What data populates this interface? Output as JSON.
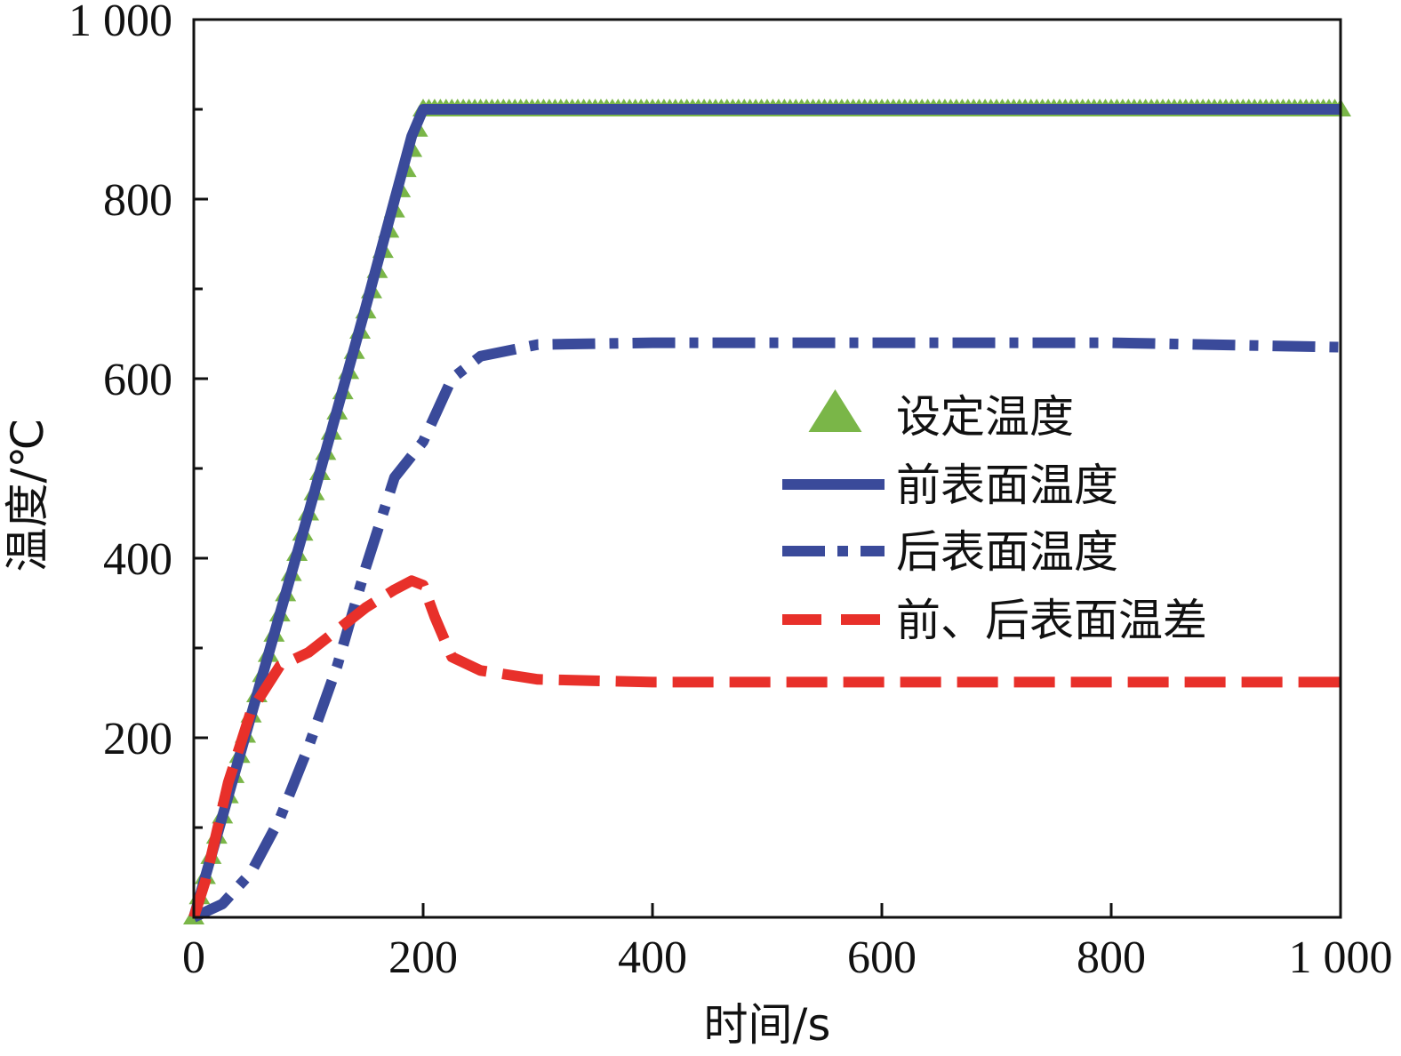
{
  "chart_data": {
    "type": "line",
    "xlabel": "时间/s",
    "ylabel": "温度/℃",
    "xlim": [
      0,
      1000
    ],
    "ylim": [
      0,
      1000
    ],
    "x_ticks": [
      {
        "value": 0,
        "label": "0"
      },
      {
        "value": 200,
        "label": "200"
      },
      {
        "value": 400,
        "label": "400"
      },
      {
        "value": 600,
        "label": "600"
      },
      {
        "value": 800,
        "label": "800"
      },
      {
        "value": 1000,
        "label": "1 000"
      }
    ],
    "y_ticks": [
      {
        "value": 200,
        "label": "200"
      },
      {
        "value": 400,
        "label": "400"
      },
      {
        "value": 600,
        "label": "600"
      },
      {
        "value": 800,
        "label": "800"
      },
      {
        "value": 1000,
        "label": "1 000"
      }
    ],
    "y_minor_ticks": [
      100,
      300,
      500,
      700,
      900
    ],
    "grid": false,
    "legend_position": "right",
    "series": [
      {
        "name": "设定温度",
        "color": "#7ab648",
        "style": "triangle-markers",
        "x": [
          0,
          200,
          1000
        ],
        "y": [
          0,
          900,
          900
        ]
      },
      {
        "name": "前表面温度",
        "color": "#3a4a9a",
        "style": "solid",
        "x": [
          0,
          20,
          50,
          100,
          150,
          190,
          200,
          1000
        ],
        "y": [
          0,
          90,
          225,
          450,
          680,
          870,
          900,
          900
        ]
      },
      {
        "name": "后表面温度",
        "color": "#3a4a9a",
        "style": "dash-dot",
        "x": [
          0,
          25,
          50,
          75,
          100,
          125,
          150,
          175,
          200,
          225,
          250,
          300,
          400,
          600,
          800,
          1000
        ],
        "y": [
          0,
          15,
          50,
          110,
          190,
          280,
          390,
          490,
          530,
          600,
          625,
          638,
          640,
          640,
          640,
          635
        ]
      },
      {
        "name": "前、后表面温差",
        "color": "#e8302a",
        "style": "dashed",
        "x": [
          0,
          10,
          30,
          50,
          75,
          100,
          125,
          150,
          175,
          190,
          200,
          210,
          225,
          250,
          300,
          400,
          600,
          1000
        ],
        "y": [
          0,
          40,
          150,
          230,
          280,
          295,
          320,
          345,
          365,
          375,
          370,
          335,
          290,
          275,
          265,
          262,
          262,
          262
        ]
      }
    ]
  }
}
